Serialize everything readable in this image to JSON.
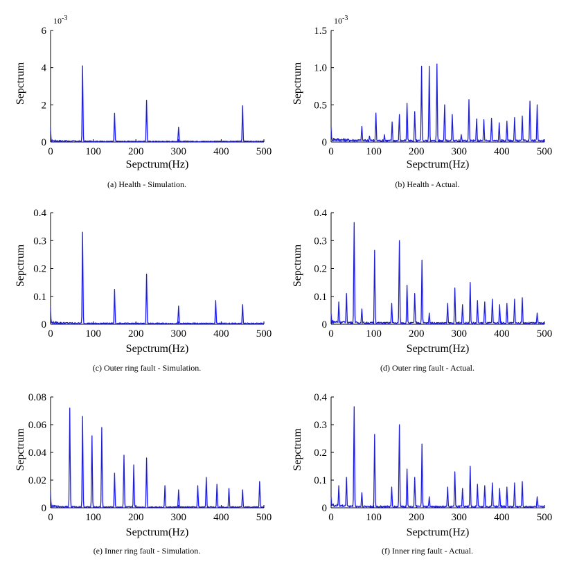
{
  "chart_data": [
    {
      "type": "line",
      "caption": "(a)  Health - Simulation.",
      "xlabel": "Sepctrum(Hz)",
      "ylabel": "Sepctrum",
      "exponent": "10",
      "exponent_power": "-3",
      "xlim": [
        0,
        500
      ],
      "ylim": [
        0,
        6
      ],
      "xticks": [
        0,
        100,
        200,
        300,
        400,
        500
      ],
      "yticks": [
        0,
        2,
        4,
        6
      ],
      "ytick_labels": [
        "0",
        "2",
        "4",
        "6"
      ],
      "color": "#1a1aff",
      "noise_level": 0.1,
      "start_value": 0.8,
      "peaks": [
        [
          75,
          4.1
        ],
        [
          150,
          1.55
        ],
        [
          225,
          2.25
        ],
        [
          300,
          0.8
        ],
        [
          450,
          1.95
        ]
      ]
    },
    {
      "type": "line",
      "caption": "(b)  Health - Actual.",
      "xlabel": "Sepctrum(Hz)",
      "ylabel": "Sepctrum",
      "exponent": "10",
      "exponent_power": "-3",
      "xlim": [
        0,
        500
      ],
      "ylim": [
        0,
        1.5
      ],
      "xticks": [
        0,
        100,
        200,
        300,
        400,
        500
      ],
      "yticks": [
        0,
        0.5,
        1.0,
        1.5
      ],
      "ytick_labels": [
        "0",
        "0.5",
        "1.0",
        "1.5"
      ],
      "color": "#1a1aff",
      "noise_level": 0.05,
      "start_value": 0.2,
      "peaks": [
        [
          72,
          0.21
        ],
        [
          90,
          0.08
        ],
        [
          105,
          0.39
        ],
        [
          125,
          0.1
        ],
        [
          143,
          0.27
        ],
        [
          160,
          0.37
        ],
        [
          178,
          0.52
        ],
        [
          196,
          0.41
        ],
        [
          212,
          1.02
        ],
        [
          230,
          1.02
        ],
        [
          248,
          1.05
        ],
        [
          266,
          0.5
        ],
        [
          284,
          0.37
        ],
        [
          305,
          0.1
        ],
        [
          323,
          0.57
        ],
        [
          341,
          0.31
        ],
        [
          358,
          0.3
        ],
        [
          376,
          0.32
        ],
        [
          394,
          0.26
        ],
        [
          412,
          0.28
        ],
        [
          430,
          0.33
        ],
        [
          448,
          0.35
        ],
        [
          466,
          0.55
        ],
        [
          483,
          0.5
        ]
      ]
    },
    {
      "type": "line",
      "caption": "(c)  Outer ring fault - Simulation.",
      "xlabel": "Sepctrum(Hz)",
      "ylabel": "Sepctrum",
      "exponent": "",
      "exponent_power": "",
      "xlim": [
        0,
        500
      ],
      "ylim": [
        0,
        0.4
      ],
      "xticks": [
        0,
        100,
        200,
        300,
        400,
        500
      ],
      "yticks": [
        0,
        0.1,
        0.2,
        0.3,
        0.4
      ],
      "ytick_labels": [
        "0",
        "0.1",
        "0.2",
        "0.3",
        "0.4"
      ],
      "color": "#1a1aff",
      "noise_level": 0.008,
      "start_value": 0.06,
      "peaks": [
        [
          75,
          0.33
        ],
        [
          150,
          0.125
        ],
        [
          225,
          0.18
        ],
        [
          300,
          0.065
        ],
        [
          387,
          0.085
        ],
        [
          450,
          0.07
        ]
      ]
    },
    {
      "type": "line",
      "caption": "(d)  Outer ring fault - Actual.",
      "xlabel": "Sepctrum(Hz)",
      "ylabel": "Sepctrum",
      "exponent": "",
      "exponent_power": "",
      "xlim": [
        0,
        500
      ],
      "ylim": [
        0,
        0.4
      ],
      "xticks": [
        0,
        100,
        200,
        300,
        400,
        500
      ],
      "yticks": [
        0,
        0.1,
        0.2,
        0.3,
        0.4
      ],
      "ytick_labels": [
        "0",
        "0.1",
        "0.2",
        "0.3",
        "0.4"
      ],
      "color": "#1a1aff",
      "noise_level": 0.012,
      "start_value": 0.04,
      "peaks": [
        [
          18,
          0.08
        ],
        [
          36,
          0.11
        ],
        [
          54,
          0.365
        ],
        [
          72,
          0.055
        ],
        [
          102,
          0.265
        ],
        [
          142,
          0.075
        ],
        [
          160,
          0.3
        ],
        [
          178,
          0.14
        ],
        [
          196,
          0.11
        ],
        [
          213,
          0.23
        ],
        [
          230,
          0.04
        ],
        [
          273,
          0.075
        ],
        [
          290,
          0.13
        ],
        [
          308,
          0.07
        ],
        [
          326,
          0.15
        ],
        [
          343,
          0.085
        ],
        [
          360,
          0.08
        ],
        [
          378,
          0.09
        ],
        [
          395,
          0.07
        ],
        [
          412,
          0.075
        ],
        [
          430,
          0.09
        ],
        [
          448,
          0.095
        ],
        [
          483,
          0.04
        ]
      ]
    },
    {
      "type": "line",
      "caption": "(e)  Inner ring fault - Simulation.",
      "xlabel": "Sepctrum(Hz)",
      "ylabel": "Sepctrum",
      "exponent": "",
      "exponent_power": "",
      "xlim": [
        0,
        500
      ],
      "ylim": [
        0,
        0.08
      ],
      "xticks": [
        0,
        100,
        200,
        300,
        400,
        500
      ],
      "yticks": [
        0,
        0.02,
        0.04,
        0.06,
        0.08
      ],
      "ytick_labels": [
        "0",
        "0.02",
        "0.04",
        "0.06",
        "0.08"
      ],
      "color": "#1a1aff",
      "noise_level": 0.0015,
      "start_value": 0.012,
      "peaks": [
        [
          45,
          0.072
        ],
        [
          75,
          0.066
        ],
        [
          97,
          0.052
        ],
        [
          120,
          0.058
        ],
        [
          150,
          0.025
        ],
        [
          172,
          0.038
        ],
        [
          195,
          0.031
        ],
        [
          225,
          0.036
        ],
        [
          268,
          0.016
        ],
        [
          300,
          0.013
        ],
        [
          345,
          0.016
        ],
        [
          365,
          0.022
        ],
        [
          390,
          0.017
        ],
        [
          418,
          0.014
        ],
        [
          450,
          0.013
        ],
        [
          490,
          0.019
        ]
      ]
    },
    {
      "type": "line",
      "caption": "(f)  Inner ring fault - Actual.",
      "xlabel": "Sepctrum(Hz)",
      "ylabel": "Sepctrum",
      "exponent": "",
      "exponent_power": "",
      "xlim": [
        0,
        500
      ],
      "ylim": [
        0,
        0.4
      ],
      "xticks": [
        0,
        100,
        200,
        300,
        400,
        500
      ],
      "yticks": [
        0,
        0.1,
        0.2,
        0.3,
        0.4
      ],
      "ytick_labels": [
        "0",
        "0.1",
        "0.2",
        "0.3",
        "0.4"
      ],
      "color": "#1a1aff",
      "noise_level": 0.012,
      "start_value": 0.04,
      "peaks": [
        [
          18,
          0.08
        ],
        [
          36,
          0.11
        ],
        [
          54,
          0.365
        ],
        [
          72,
          0.055
        ],
        [
          102,
          0.265
        ],
        [
          142,
          0.075
        ],
        [
          160,
          0.3
        ],
        [
          178,
          0.14
        ],
        [
          196,
          0.11
        ],
        [
          213,
          0.23
        ],
        [
          230,
          0.04
        ],
        [
          273,
          0.075
        ],
        [
          290,
          0.13
        ],
        [
          308,
          0.07
        ],
        [
          326,
          0.15
        ],
        [
          343,
          0.085
        ],
        [
          360,
          0.08
        ],
        [
          378,
          0.09
        ],
        [
          395,
          0.07
        ],
        [
          412,
          0.075
        ],
        [
          430,
          0.09
        ],
        [
          448,
          0.095
        ],
        [
          483,
          0.04
        ]
      ]
    }
  ]
}
